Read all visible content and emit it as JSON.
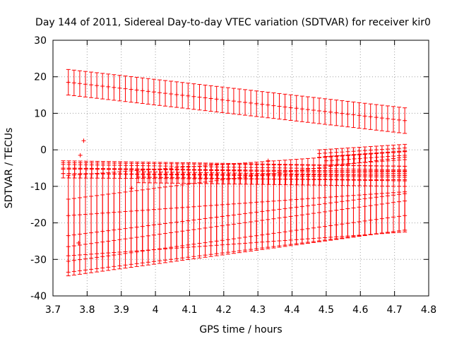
{
  "chart_data": {
    "type": "scatter",
    "title": "Day 144 of 2011, Sidereal Day-to-day VTEC variation (SDTVAR) for receiver kir0",
    "xlabel": "GPS time / hours",
    "ylabel": "SDTVAR / TECUs",
    "xlim": [
      3.7,
      4.8
    ],
    "ylim": [
      -40,
      30
    ],
    "xticks": [
      3.7,
      3.8,
      3.9,
      4.0,
      4.1,
      4.2,
      4.3,
      4.4,
      4.5,
      4.6,
      4.7,
      4.8
    ],
    "xtick_labels": [
      "3.7",
      "3.8",
      "3.9",
      "4",
      "4.1",
      "4.2",
      "4.3",
      "4.4",
      "4.5",
      "4.6",
      "4.7",
      "4.8"
    ],
    "yticks": [
      -40,
      -30,
      -20,
      -10,
      0,
      10,
      20,
      30
    ],
    "ytick_labels": [
      "-40",
      "-30",
      "-20",
      "-10",
      "0",
      "10",
      "20",
      "30"
    ],
    "grid": true,
    "marker": "+",
    "color": "#ff0000",
    "x_step": 0.0167,
    "series": [
      {
        "name": "upper",
        "x_start": 3.745,
        "x_end": 4.73,
        "y_start": 18.5,
        "y_end": 8.0,
        "error": 3.5
      },
      {
        "name": "lower-1",
        "x_start": 3.745,
        "x_end": 4.73,
        "y_start": -30.5,
        "y_end": -18.0,
        "error": 4.0
      },
      {
        "name": "lower-2",
        "x_start": 3.745,
        "x_end": 4.73,
        "y_start": -23.5,
        "y_end": -12.0,
        "error": 10.0
      },
      {
        "name": "lower-3",
        "x_start": 3.745,
        "x_end": 4.73,
        "y_start": -18.0,
        "y_end": -11.5,
        "error": 11.0
      },
      {
        "name": "middle-1",
        "x_start": 3.73,
        "x_end": 4.73,
        "y_start": -5.0,
        "y_end": -6.0,
        "error": 1.5
      },
      {
        "name": "middle-2",
        "x_start": 3.73,
        "x_end": 4.73,
        "y_start": -6.5,
        "y_end": -7.0,
        "error": 1.2
      },
      {
        "name": "middle-3",
        "x_start": 3.73,
        "x_end": 4.73,
        "y_start": -4.0,
        "y_end": -5.5,
        "error": 1.0
      },
      {
        "name": "middle-4",
        "x_start": 3.95,
        "x_end": 4.73,
        "y_start": -7.5,
        "y_end": -8.5,
        "error": 1.5
      },
      {
        "name": "rising-1",
        "x_start": 4.48,
        "x_end": 4.73,
        "y_start": -1.0,
        "y_end": 0.5,
        "error": 1.0
      },
      {
        "name": "rising-2",
        "x_start": 4.5,
        "x_end": 4.73,
        "y_start": -3.0,
        "y_end": -1.5,
        "error": 1.2
      }
    ],
    "outliers": [
      {
        "x": 3.79,
        "y": 2.5
      },
      {
        "x": 3.775,
        "y": -25.5
      },
      {
        "x": 3.78,
        "y": -1.5
      },
      {
        "x": 4.33,
        "y": -3.0
      },
      {
        "x": 3.93,
        "y": -10.5
      }
    ]
  }
}
